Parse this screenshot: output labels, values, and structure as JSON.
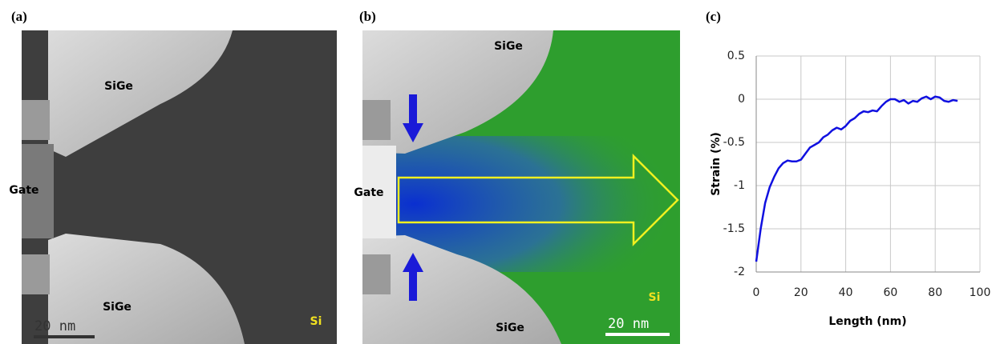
{
  "panel_a": {
    "label": "(a)",
    "top_region": "SiGe",
    "gate": "Gate",
    "bottom_region": "SiGe",
    "substrate": "Si",
    "scale_bar": "20 nm"
  },
  "panel_b": {
    "label": "(b)",
    "top_region": "SiGe",
    "gate": "Gate",
    "bottom_region": "SiGe",
    "substrate": "Si",
    "scale_bar": "20 nm"
  },
  "chart_data": {
    "type": "line",
    "panel_label": "(c)",
    "xlabel": "Length (nm)",
    "ylabel": "Strain (%)",
    "x": [
      0,
      2,
      4,
      6,
      8,
      10,
      12,
      14,
      16,
      18,
      20,
      22,
      24,
      26,
      28,
      30,
      32,
      34,
      36,
      38,
      40,
      42,
      44,
      46,
      48,
      50,
      52,
      54,
      56,
      58,
      60,
      62,
      64,
      66,
      68,
      70,
      72,
      74,
      76,
      78,
      80,
      82,
      84,
      86,
      88,
      90
    ],
    "series": [
      {
        "color": "#1010e0",
        "values": [
          -1.88,
          -1.5,
          -1.2,
          -1.02,
          -0.9,
          -0.8,
          -0.74,
          -0.71,
          -0.72,
          -0.72,
          -0.7,
          -0.63,
          -0.56,
          -0.53,
          -0.5,
          -0.44,
          -0.41,
          -0.36,
          -0.33,
          -0.35,
          -0.31,
          -0.25,
          -0.22,
          -0.17,
          -0.14,
          -0.15,
          -0.13,
          -0.14,
          -0.08,
          -0.03,
          0,
          0,
          -0.03,
          -0.01,
          -0.05,
          -0.02,
          -0.03,
          0.01,
          0.03,
          0,
          0.03,
          0.02,
          -0.02,
          -0.03,
          -0.01,
          -0.02
        ]
      }
    ],
    "xlim": [
      0,
      100
    ],
    "ylim": [
      -2,
      0.5
    ],
    "xticks": [
      0,
      20,
      40,
      60,
      80,
      100
    ],
    "yticks": [
      0.5,
      0,
      -0.5,
      -1,
      -1.5,
      -2
    ],
    "grid": true
  }
}
